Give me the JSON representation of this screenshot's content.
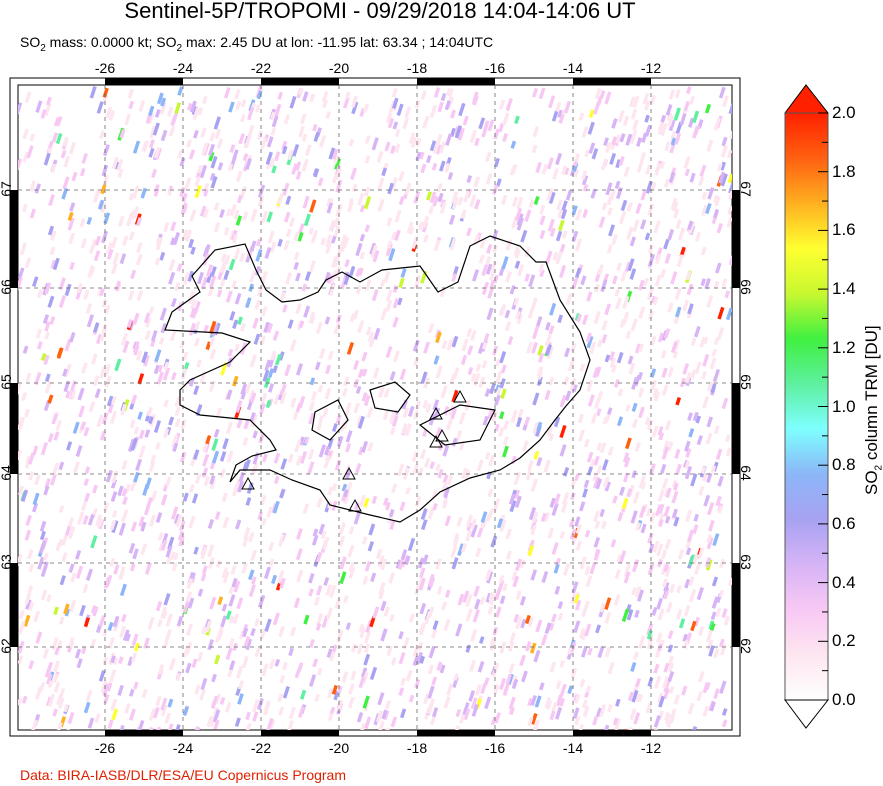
{
  "title": "Sentinel-5P/TROPOMI - 09/29/2018 14:04-14:06 UT",
  "subtitle": {
    "part1": "SO",
    "sub1": "2",
    "part2": " mass: 0.0000 kt; SO",
    "sub2": "2",
    "part3": " max: 2.45 DU at lon: -11.95 lat: 63.34 ; 14:04UTC"
  },
  "map": {
    "lon_ticks": [
      "-26",
      "-24",
      "-22",
      "-20",
      "-18",
      "-16",
      "-14",
      "-12"
    ],
    "lat_ticks": [
      "67",
      "66",
      "65",
      "64",
      "63",
      "62"
    ],
    "volcano_icon": "triangle-outline",
    "coastline_color": "#000000"
  },
  "colorbar": {
    "ticks": [
      "2.0",
      "1.8",
      "1.6",
      "1.4",
      "1.2",
      "1.0",
      "0.8",
      "0.6",
      "0.4",
      "0.2",
      "0.0"
    ],
    "label_pre": "SO",
    "label_sub": "2",
    "label_post": " column TRM [DU]",
    "range": [
      0.0,
      2.0
    ],
    "colors": [
      "#ffffff",
      "#fde6f0",
      "#f8c8f4",
      "#d6b4f6",
      "#a8a2f2",
      "#8cb6f8",
      "#7effff",
      "#5ef0a0",
      "#40f040",
      "#c8f830",
      "#ffff30",
      "#ffb020",
      "#ff6010",
      "#ff2000"
    ]
  },
  "credit": "Data: BIRA-IASB/DLR/ESA/EU Copernicus Program"
}
